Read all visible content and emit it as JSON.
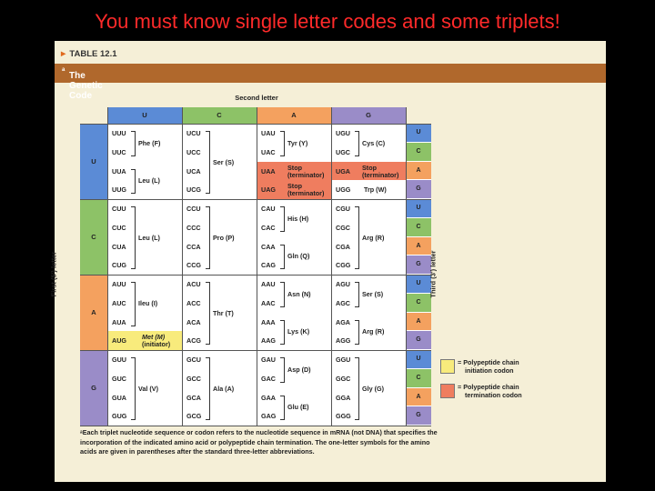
{
  "slide_title": "You must know single letter codes and some triplets!",
  "table_label": "TABLE 12.1",
  "table_title": "The Genetic Code",
  "table_title_sup": "a",
  "second_letter": "Second letter",
  "first_letter": "First (5') letter",
  "third_letter": "Third (3') letter",
  "colors": {
    "U": "#5b8bd6",
    "C": "#8dc267",
    "A": "#f4a15f",
    "G": "#9a8cc8",
    "initiation": "#f8eb7c",
    "termination": "#ef7d5f",
    "title_bar": "#b0682c",
    "panel": "#f5efd7",
    "slide_title": "#ff2a2a"
  },
  "second_headers": [
    "U",
    "C",
    "A",
    "G"
  ],
  "third_labels": [
    "U",
    "C",
    "A",
    "G"
  ],
  "rows": [
    {
      "first": "U",
      "codons": [
        [
          "UUU",
          "UUC",
          "UUA",
          "UUG"
        ],
        [
          "UCU",
          "UCC",
          "UCA",
          "UCG"
        ],
        [
          "UAU",
          "UAC",
          "UAA",
          "UAG"
        ],
        [
          "UGU",
          "UGC",
          "UGA",
          "UGG"
        ]
      ]
    },
    {
      "first": "C",
      "codons": [
        [
          "CUU",
          "CUC",
          "CUA",
          "CUG"
        ],
        [
          "CCU",
          "CCC",
          "CCA",
          "CCG"
        ],
        [
          "CAU",
          "CAC",
          "CAA",
          "CAG"
        ],
        [
          "CGU",
          "CGC",
          "CGA",
          "CGG"
        ]
      ]
    },
    {
      "first": "A",
      "codons": [
        [
          "AUU",
          "AUC",
          "AUA",
          "AUG"
        ],
        [
          "ACU",
          "ACC",
          "ACA",
          "ACG"
        ],
        [
          "AAU",
          "AAC",
          "AAA",
          "AAG"
        ],
        [
          "AGU",
          "AGC",
          "AGA",
          "AGG"
        ]
      ]
    },
    {
      "first": "G",
      "codons": [
        [
          "GUU",
          "GUC",
          "GUA",
          "GUG"
        ],
        [
          "GCU",
          "GCC",
          "GCA",
          "GCG"
        ],
        [
          "GAU",
          "GAC",
          "GAA",
          "GAG"
        ],
        [
          "GGU",
          "GGC",
          "GGA",
          "GGG"
        ]
      ]
    }
  ],
  "amino": {
    "phe": "Phe (F)",
    "leu_u": "Leu (L)",
    "ser_u": "Ser (S)",
    "tyr": "Tyr (Y)",
    "stop": "Stop",
    "terminator": "(terminator)",
    "cys": "Cys (C)",
    "trp": "Trp (W)",
    "leu_c": "Leu (L)",
    "pro": "Pro (P)",
    "his": "His (H)",
    "gln": "Gln (Q)",
    "arg_c": "Arg (R)",
    "ile": "Ileu (I)",
    "thr": "Thr (T)",
    "asn": "Asn (N)",
    "lys": "Lys (K)",
    "ser_a": "Ser (S)",
    "arg_a": "Arg (R)",
    "met": "Met (M)",
    "initiator": "(initiator)",
    "val": "Val (V)",
    "ala": "Ala (A)",
    "asp": "Asp (D)",
    "glu": "Glu (E)",
    "gly": "Gly (G)"
  },
  "legend": {
    "initiation": [
      "= Polypeptide chain",
      "initiation codon"
    ],
    "termination": [
      "= Polypeptide chain",
      "termination codon"
    ]
  },
  "footnote": "ᵃEach triplet nucleotide sequence or codon refers to the nucleotide sequence in mRNA (not DNA) that specifies the incorporation of the indicated amino acid or polypeptide chain termination. The one-letter symbols for the amino acids are given in parentheses after the standard three-letter abbreviations."
}
